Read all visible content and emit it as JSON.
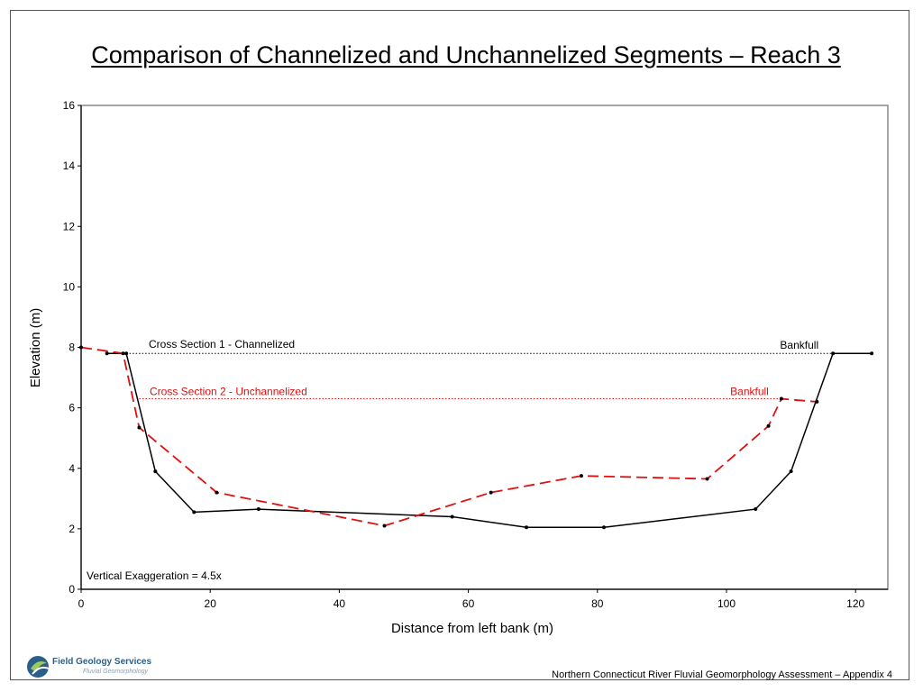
{
  "chart_data": {
    "type": "line",
    "title": "Comparison of Channelized and Unchannelized Segments – Reach 3",
    "xlabel": "Distance from left bank (m)",
    "ylabel": "Elevation (m)",
    "xlim": [
      0,
      125
    ],
    "ylim": [
      0,
      16
    ],
    "xticks": [
      "0",
      "20",
      "40",
      "60",
      "80",
      "100",
      "120"
    ],
    "yticks": [
      "0",
      "2",
      "4",
      "6",
      "8",
      "10",
      "12",
      "14",
      "16"
    ],
    "grid": false,
    "series": [
      {
        "name": "Cross Section 1 - Channelized",
        "color": "#000000",
        "style": "solid",
        "points": [
          [
            4,
            7.8
          ],
          [
            7,
            7.8
          ],
          [
            11.5,
            3.9
          ],
          [
            17.5,
            2.55
          ],
          [
            27.5,
            2.65
          ],
          [
            57.5,
            2.4
          ],
          [
            69,
            2.05
          ],
          [
            81,
            2.05
          ],
          [
            104.5,
            2.65
          ],
          [
            110,
            3.9
          ],
          [
            116.5,
            7.8
          ],
          [
            122.5,
            7.8
          ]
        ],
        "bankfull": {
          "label": "Bankfull",
          "y": 7.8,
          "x_start": 7,
          "x_end": 116.5
        }
      },
      {
        "name": "Cross Section 2 - Unchannelized",
        "color": "#e01010",
        "style": "dashed",
        "points": [
          [
            0,
            8.0
          ],
          [
            6.5,
            7.8
          ],
          [
            9,
            5.35
          ],
          [
            21,
            3.2
          ],
          [
            47,
            2.1
          ],
          [
            63.5,
            3.2
          ],
          [
            77.5,
            3.75
          ],
          [
            97,
            3.65
          ],
          [
            106.5,
            5.4
          ],
          [
            108.5,
            6.3
          ],
          [
            114,
            6.2
          ]
        ],
        "bankfull": {
          "label": "Bankfull",
          "y": 6.3,
          "x_start": 9,
          "x_end": 108.5
        }
      }
    ],
    "annotations": [
      "Vertical Exaggeration = 4.5x"
    ]
  },
  "footer": "Northern Connecticut River Fluvial Geomorphology Assessment – Appendix 4",
  "logo": {
    "text": "Field Geology Services",
    "sub": "Fluvial Geomorphology"
  }
}
